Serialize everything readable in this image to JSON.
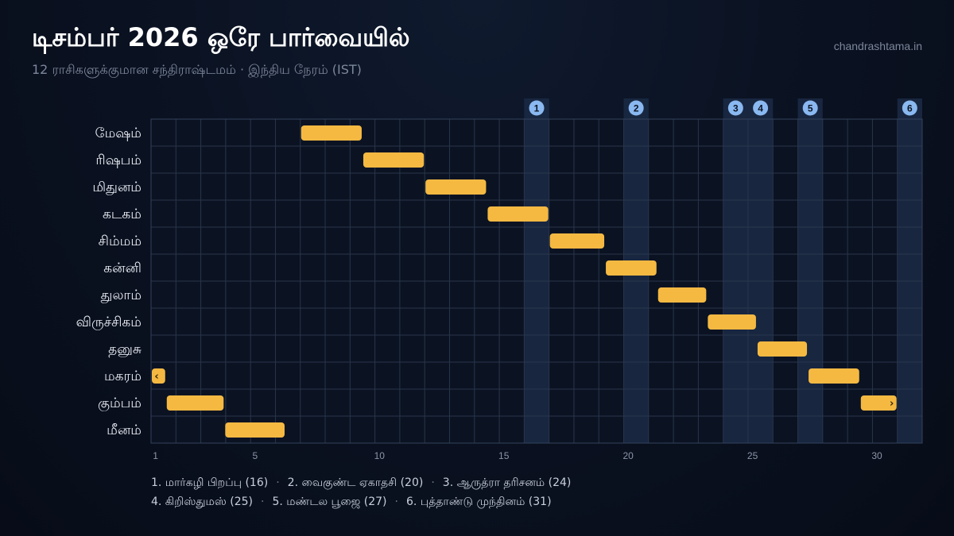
{
  "header": {
    "title": "டிசம்பர் 2026 ஒரே பார்வையில்",
    "subtitle": "12 ராசிகளுக்குமான சந்திராஷ்டமம் · இந்திய நேரம் (IST)",
    "brand": "chandrashtama.in"
  },
  "colors": {
    "bar": "#f5b942",
    "festival_band": "#1b2a45",
    "badge": "#8ab8f0",
    "badge_text": "#0b1424",
    "grid": "#28354b",
    "label": "#e8ecf4",
    "tick": "#8b95a8"
  },
  "chart_data": {
    "type": "gantt",
    "xlim": [
      1,
      31
    ],
    "x_ticks": [
      1,
      5,
      10,
      15,
      20,
      25,
      30
    ],
    "rows": [
      {
        "label": "மேஷம்",
        "bars": [
          {
            "start": 7.0,
            "end": 9.5
          }
        ]
      },
      {
        "label": "ரிஷபம்",
        "bars": [
          {
            "start": 9.5,
            "end": 12.0
          }
        ]
      },
      {
        "label": "மிதுனம்",
        "bars": [
          {
            "start": 12.0,
            "end": 14.5
          }
        ]
      },
      {
        "label": "கடகம்",
        "bars": [
          {
            "start": 14.5,
            "end": 17.0
          }
        ]
      },
      {
        "label": "சிம்மம்",
        "bars": [
          {
            "start": 17.0,
            "end": 19.25
          }
        ]
      },
      {
        "label": "கன்னி",
        "bars": [
          {
            "start": 19.25,
            "end": 21.35
          }
        ]
      },
      {
        "label": "துலாம்",
        "bars": [
          {
            "start": 21.35,
            "end": 23.35
          }
        ]
      },
      {
        "label": "விருச்சிகம்",
        "bars": [
          {
            "start": 23.35,
            "end": 25.35
          }
        ]
      },
      {
        "label": "தனுசு",
        "bars": [
          {
            "start": 25.35,
            "end": 27.4
          }
        ]
      },
      {
        "label": "மகரம்",
        "bars": [
          {
            "start": 1.0,
            "end": 1.6,
            "continues_from_prev_month": true,
            "arrow": "‹"
          },
          {
            "start": 27.4,
            "end": 29.5
          }
        ]
      },
      {
        "label": "கும்பம்",
        "bars": [
          {
            "start": 1.6,
            "end": 3.95
          },
          {
            "start": 29.5,
            "end": 31.0,
            "continues_to_next_month": true,
            "arrow": "›"
          }
        ]
      },
      {
        "label": "மீனம்",
        "bars": [
          {
            "start": 3.95,
            "end": 6.4
          }
        ]
      }
    ],
    "markers": [
      {
        "num": "1",
        "day": 16
      },
      {
        "num": "2",
        "day": 20
      },
      {
        "num": "3",
        "day": 24
      },
      {
        "num": "4",
        "day": 25
      },
      {
        "num": "5",
        "day": 27
      },
      {
        "num": "6",
        "day": 31
      }
    ]
  },
  "legend": [
    "1. மார்கழி பிறப்பு (16)",
    "2. வைகுண்ட ஏகாதசி (20)",
    "3. ஆருத்ரா தரிசனம் (24)",
    "4. கிறிஸ்துமஸ் (25)",
    "5. மண்டல பூஜை (27)",
    "6. புத்தாண்டு முந்தினம் (31)"
  ],
  "legend_separator": "·"
}
